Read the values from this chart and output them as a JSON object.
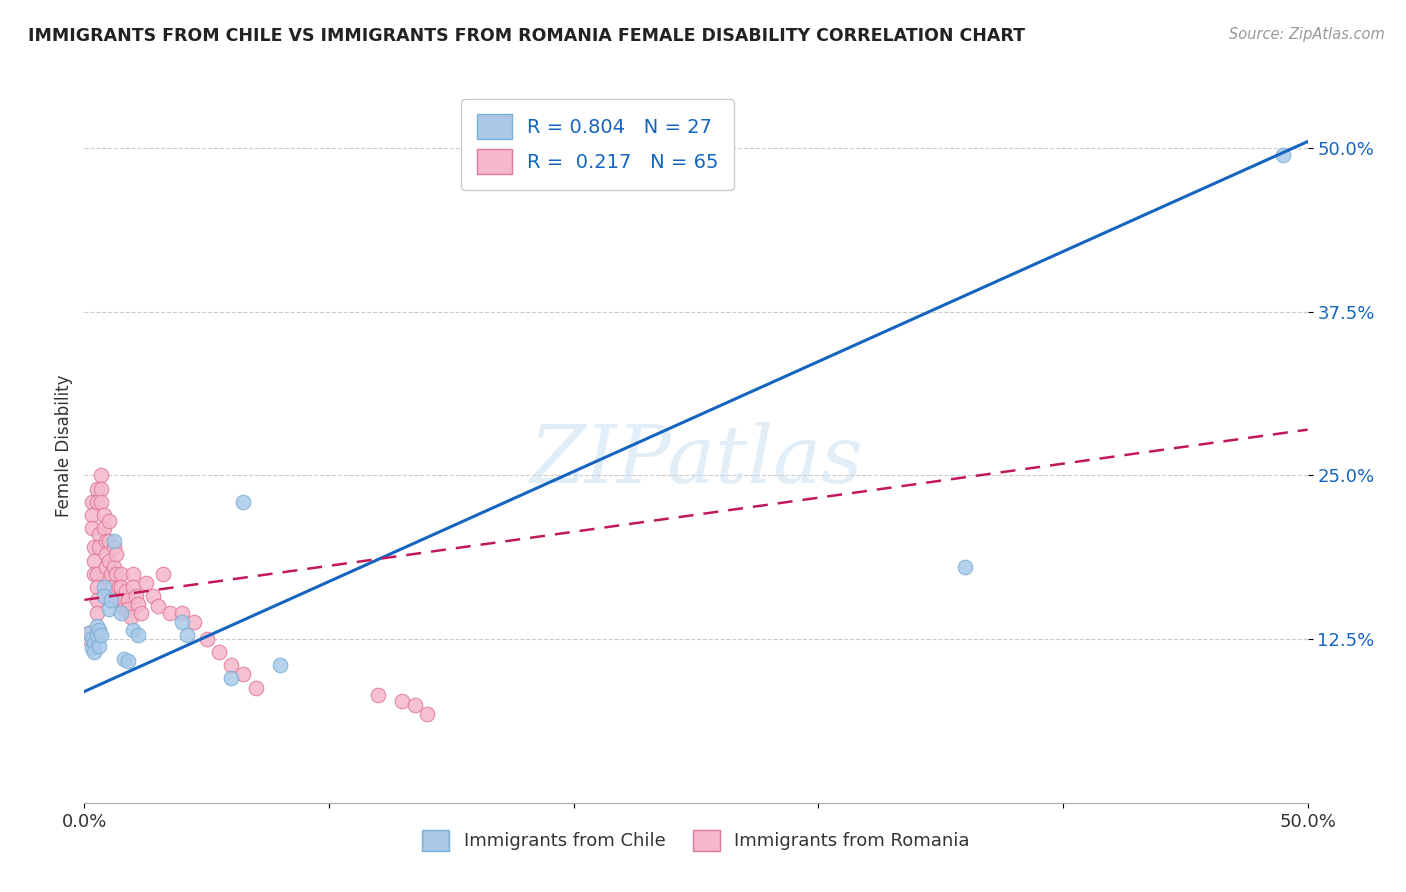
{
  "title": "IMMIGRANTS FROM CHILE VS IMMIGRANTS FROM ROMANIA FEMALE DISABILITY CORRELATION CHART",
  "source": "Source: ZipAtlas.com",
  "ylabel": "Female Disability",
  "xlim": [
    0.0,
    0.5
  ],
  "ylim": [
    0.0,
    0.545
  ],
  "yticks": [
    0.125,
    0.25,
    0.375,
    0.5
  ],
  "ytick_labels": [
    "12.5%",
    "25.0%",
    "37.5%",
    "50.0%"
  ],
  "xticks": [
    0.0,
    0.1,
    0.2,
    0.3,
    0.4,
    0.5
  ],
  "xtick_labels": [
    "0.0%",
    "",
    "",
    "",
    "",
    "50.0%"
  ],
  "chile_color": "#aac9e8",
  "romania_color": "#f5b8cb",
  "chile_edge": "#7aafd4",
  "romania_edge": "#e07898",
  "trendline_chile_color": "#1565c0",
  "trendline_romania_color": "#c2185b",
  "legend_R_chile": "0.804",
  "legend_N_chile": "27",
  "legend_R_romania": "0.217",
  "legend_N_romania": "65",
  "watermark": "ZIPatlas",
  "chile_trendline_x": [
    0.0,
    0.5
  ],
  "chile_trendline_y": [
    0.085,
    0.505
  ],
  "romania_trendline_x": [
    0.0,
    0.5
  ],
  "romania_trendline_y": [
    0.155,
    0.285
  ],
  "chile_x": [
    0.002,
    0.003,
    0.003,
    0.004,
    0.004,
    0.005,
    0.005,
    0.006,
    0.006,
    0.007,
    0.008,
    0.008,
    0.01,
    0.011,
    0.012,
    0.015,
    0.016,
    0.018,
    0.02,
    0.022,
    0.04,
    0.042,
    0.06,
    0.065,
    0.08,
    0.36,
    0.49
  ],
  "chile_y": [
    0.13,
    0.125,
    0.118,
    0.122,
    0.115,
    0.135,
    0.128,
    0.132,
    0.12,
    0.128,
    0.165,
    0.158,
    0.148,
    0.155,
    0.2,
    0.145,
    0.11,
    0.108,
    0.132,
    0.128,
    0.138,
    0.128,
    0.095,
    0.23,
    0.105,
    0.18,
    0.495
  ],
  "romania_x": [
    0.002,
    0.002,
    0.003,
    0.003,
    0.003,
    0.004,
    0.004,
    0.004,
    0.005,
    0.005,
    0.005,
    0.005,
    0.005,
    0.005,
    0.006,
    0.006,
    0.007,
    0.007,
    0.007,
    0.008,
    0.008,
    0.009,
    0.009,
    0.009,
    0.01,
    0.01,
    0.01,
    0.01,
    0.011,
    0.011,
    0.012,
    0.012,
    0.013,
    0.013,
    0.014,
    0.014,
    0.015,
    0.015,
    0.016,
    0.016,
    0.017,
    0.018,
    0.018,
    0.019,
    0.02,
    0.02,
    0.021,
    0.022,
    0.023,
    0.025,
    0.028,
    0.03,
    0.032,
    0.035,
    0.04,
    0.045,
    0.05,
    0.055,
    0.06,
    0.065,
    0.07,
    0.12,
    0.13,
    0.135,
    0.14
  ],
  "romania_y": [
    0.13,
    0.125,
    0.23,
    0.22,
    0.21,
    0.195,
    0.185,
    0.175,
    0.24,
    0.23,
    0.175,
    0.165,
    0.155,
    0.145,
    0.205,
    0.195,
    0.25,
    0.24,
    0.23,
    0.22,
    0.21,
    0.2,
    0.19,
    0.18,
    0.215,
    0.2,
    0.185,
    0.17,
    0.175,
    0.165,
    0.195,
    0.18,
    0.19,
    0.175,
    0.165,
    0.155,
    0.175,
    0.165,
    0.155,
    0.148,
    0.162,
    0.155,
    0.148,
    0.142,
    0.175,
    0.165,
    0.158,
    0.152,
    0.145,
    0.168,
    0.158,
    0.15,
    0.175,
    0.145,
    0.145,
    0.138,
    0.125,
    0.115,
    0.105,
    0.098,
    0.088,
    0.082,
    0.078,
    0.075,
    0.068
  ]
}
